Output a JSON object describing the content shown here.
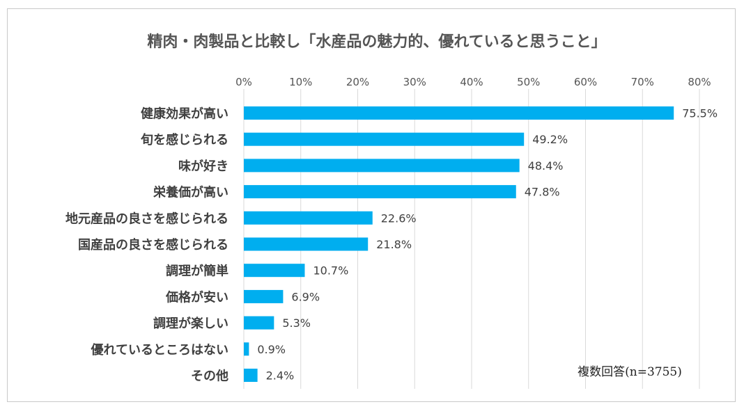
{
  "chart_data": {
    "type": "bar",
    "orientation": "horizontal",
    "title": "精肉・肉製品と比較し「水産品の魅力的、優れていると思うこと」",
    "categories": [
      "健康効果が高い",
      "旬を感じられる",
      "味が好き",
      "栄養価が高い",
      "地元産品の良さを感じられる",
      "国産品の良さを感じられる",
      "調理が簡単",
      "価格が安い",
      "調理が楽しい",
      "優れているところはない",
      "その他"
    ],
    "values": [
      75.5,
      49.2,
      48.4,
      47.8,
      22.6,
      21.8,
      10.7,
      6.9,
      5.3,
      0.9,
      2.4
    ],
    "value_labels": [
      "75.5%",
      "49.2%",
      "48.4%",
      "47.8%",
      "22.6%",
      "21.8%",
      "10.7%",
      "6.9%",
      "5.3%",
      "0.9%",
      "2.4%"
    ],
    "xticks": [
      0,
      10,
      20,
      30,
      40,
      50,
      60,
      70,
      80
    ],
    "xtick_labels": [
      "0%",
      "10%",
      "20%",
      "30%",
      "40%",
      "50%",
      "60%",
      "70%",
      "80%"
    ],
    "xlim": [
      0,
      80
    ],
    "grid": true,
    "note": "複数回答(n=3755)",
    "bar_color": "#00aeef"
  }
}
